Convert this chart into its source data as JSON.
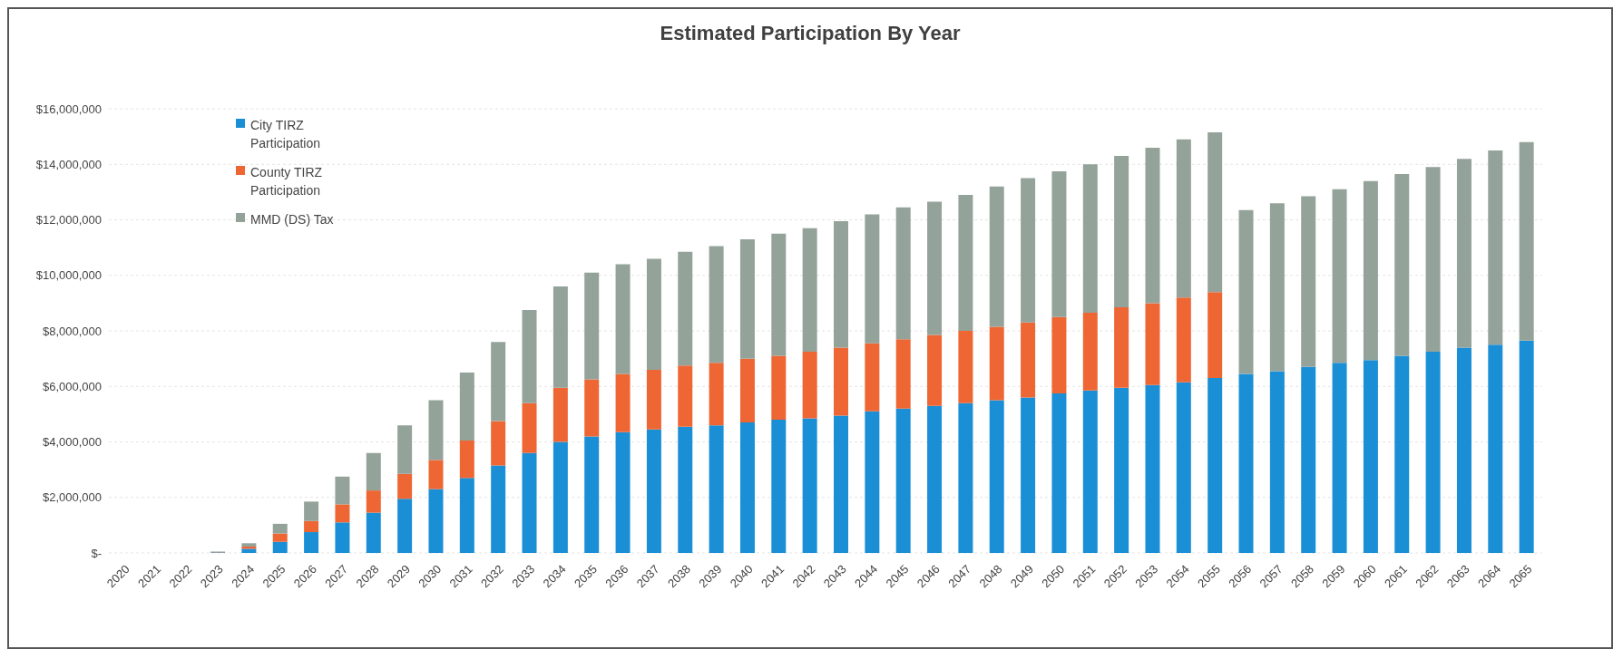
{
  "chart_data": {
    "type": "bar",
    "title": "Estimated Participation By Year",
    "stacked": true,
    "legend": "top left",
    "grid": "y",
    "categories": [
      "2020",
      "2021",
      "2022",
      "2023",
      "2024",
      "2025",
      "2026",
      "2027",
      "2028",
      "2029",
      "2030",
      "2031",
      "2032",
      "2033",
      "2034",
      "2035",
      "2036",
      "2037",
      "2038",
      "2039",
      "2040",
      "2041",
      "2042",
      "2043",
      "2044",
      "2045",
      "2046",
      "2047",
      "2048",
      "2049",
      "2050",
      "2051",
      "2052",
      "2053",
      "2054",
      "2055",
      "2056",
      "2057",
      "2058",
      "2059",
      "2060",
      "2061",
      "2062",
      "2063",
      "2064",
      "2065"
    ],
    "ylim": [
      0,
      16000000
    ],
    "yticks": [
      {
        "value": 0,
        "label": "$-"
      },
      {
        "value": 2000000,
        "label": "$2,000,000"
      },
      {
        "value": 4000000,
        "label": "$4,000,000"
      },
      {
        "value": 6000000,
        "label": "$6,000,000"
      },
      {
        "value": 8000000,
        "label": "$8,000,000"
      },
      {
        "value": 10000000,
        "label": "$10,000,000"
      },
      {
        "value": 12000000,
        "label": "$12,000,000"
      },
      {
        "value": 14000000,
        "label": "$14,000,000"
      },
      {
        "value": 16000000,
        "label": "$16,000,000"
      }
    ],
    "series": [
      {
        "name": "City TIRZ Participation",
        "color": "#1a8fd6",
        "values": [
          0,
          0,
          0,
          20000,
          150000,
          400000,
          750000,
          1100000,
          1450000,
          1950000,
          2300000,
          2700000,
          3150000,
          3600000,
          4000000,
          4200000,
          4350000,
          4450000,
          4550000,
          4600000,
          4700000,
          4800000,
          4850000,
          4950000,
          5100000,
          5200000,
          5300000,
          5400000,
          5500000,
          5600000,
          5750000,
          5850000,
          5950000,
          6050000,
          6150000,
          6300000,
          6450000,
          6550000,
          6700000,
          6850000,
          6950000,
          7100000,
          7250000,
          7400000,
          7500000,
          7650000
        ]
      },
      {
        "name": "County TIRZ Participation",
        "color": "#ee6633",
        "values": [
          0,
          0,
          0,
          10000,
          80000,
          300000,
          400000,
          650000,
          800000,
          900000,
          1050000,
          1350000,
          1600000,
          1800000,
          1950000,
          2050000,
          2100000,
          2150000,
          2200000,
          2250000,
          2300000,
          2300000,
          2400000,
          2450000,
          2450000,
          2500000,
          2550000,
          2600000,
          2650000,
          2700000,
          2750000,
          2800000,
          2900000,
          2950000,
          3050000,
          3100000,
          0,
          0,
          0,
          0,
          0,
          0,
          0,
          0,
          0,
          0
        ]
      },
      {
        "name": "MMD (DS) Tax",
        "color": "#94a39a",
        "values": [
          0,
          0,
          0,
          20000,
          120000,
          350000,
          700000,
          1000000,
          1350000,
          1750000,
          2150000,
          2450000,
          2850000,
          3350000,
          3650000,
          3850000,
          3950000,
          4000000,
          4100000,
          4200000,
          4300000,
          4400000,
          4450000,
          4550000,
          4650000,
          4750000,
          4800000,
          4900000,
          5050000,
          5200000,
          5250000,
          5350000,
          5450000,
          5600000,
          5700000,
          5750000,
          5900000,
          6050000,
          6150000,
          6250000,
          6450000,
          6550000,
          6650000,
          6800000,
          7000000,
          7150000
        ]
      }
    ]
  }
}
